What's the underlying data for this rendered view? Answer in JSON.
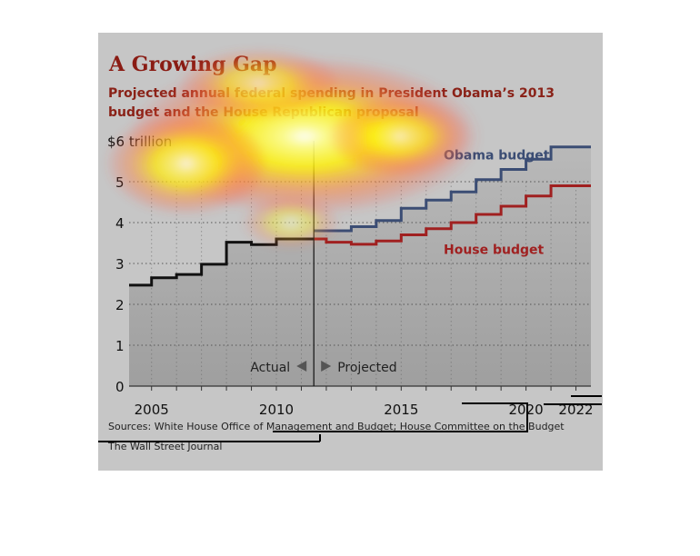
{
  "chart_data": {
    "type": "line",
    "title": "A Growing Gap",
    "subtitle": "Projected annual federal spending in President Obama’s 2013 budget and the House Republican proposal",
    "x_ticks": [
      "2005",
      "2010",
      "2015",
      "2020",
      "2022"
    ],
    "y_ticks": [
      "0",
      "1",
      "2",
      "3",
      "4",
      "5"
    ],
    "y_top_label": "$6 trillion",
    "ylim": [
      0,
      6
    ],
    "grid": true,
    "series": [
      {
        "name": "Actual",
        "color": "#111111",
        "x": [
          2004,
          2005,
          2006,
          2007,
          2008,
          2009,
          2010,
          2011
        ],
        "values": [
          2.47,
          2.65,
          2.73,
          2.98,
          3.52,
          3.46,
          3.6,
          3.6
        ]
      },
      {
        "name": "Obama budget",
        "color": "#3b4d74",
        "x": [
          2011,
          2012,
          2013,
          2014,
          2015,
          2016,
          2017,
          2018,
          2019,
          2020,
          2021,
          2022
        ],
        "values": [
          3.8,
          3.8,
          3.9,
          4.05,
          4.35,
          4.55,
          4.75,
          5.05,
          5.3,
          5.55,
          5.85,
          5.85
        ]
      },
      {
        "name": "House budget",
        "color": "#a02020",
        "x": [
          2011,
          2012,
          2013,
          2014,
          2015,
          2016,
          2017,
          2018,
          2019,
          2020,
          2021,
          2022
        ],
        "values": [
          3.6,
          3.52,
          3.47,
          3.55,
          3.7,
          3.85,
          4.0,
          4.2,
          4.4,
          4.65,
          4.9,
          4.9
        ]
      }
    ],
    "divider_year": 2011.5,
    "label_actual": "Actual",
    "label_projected": "Projected",
    "sources": "Sources: White House Office of Management and Budget; House Committee on the Budget",
    "credit": "The Wall Street Journal"
  },
  "colors": {
    "panel": "#c6c6c6",
    "plot_shade": "#a9a9a9",
    "title": "#8a1c14"
  }
}
